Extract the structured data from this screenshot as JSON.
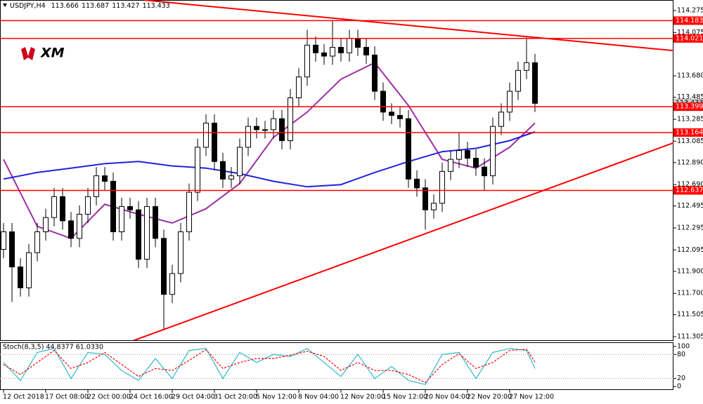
{
  "chart_data": {
    "type": "candlestick",
    "symbol": "USDJPY,H4",
    "quote": [
      113.666,
      113.687,
      113.427,
      113.433
    ],
    "logo": "XM",
    "x": [
      0,
      1,
      2,
      3,
      4,
      5,
      6,
      7,
      8,
      9,
      10,
      11,
      12,
      13,
      14,
      15,
      16,
      17,
      18,
      19,
      20,
      21,
      22,
      23,
      24,
      25,
      26,
      27,
      28,
      29,
      30,
      31,
      32,
      33,
      34,
      35,
      36,
      37,
      38,
      39,
      40,
      41,
      42,
      43,
      44,
      45,
      46,
      47,
      48,
      49,
      50,
      51,
      52,
      53,
      54,
      55,
      56,
      57,
      58,
      59,
      60,
      61,
      62,
      63
    ],
    "open": [
      112.1,
      112.26,
      111.94,
      111.75,
      112.07,
      112.26,
      112.39,
      112.58,
      112.36,
      112.2,
      112.42,
      112.58,
      112.77,
      112.72,
      112.26,
      112.49,
      112.46,
      112.01,
      112.49,
      112.2,
      111.69,
      111.88,
      112.26,
      112.62,
      113.03,
      113.25,
      112.9,
      112.74,
      112.77,
      113.03,
      113.22,
      113.19,
      113.19,
      113.29,
      113.09,
      113.48,
      113.67,
      113.96,
      113.89,
      113.86,
      113.94,
      113.89,
      114.02,
      113.94,
      113.87,
      113.54,
      113.35,
      113.32,
      113.29,
      112.74,
      112.66,
      112.46,
      112.52,
      112.81,
      112.92,
      113.0,
      112.93,
      112.85,
      112.77,
      113.22,
      113.35,
      113.54,
      113.73,
      113.8
    ],
    "high": [
      112.34,
      112.34,
      112.02,
      112.15,
      112.34,
      112.47,
      112.66,
      112.66,
      112.44,
      112.5,
      112.66,
      112.85,
      112.85,
      112.8,
      112.57,
      112.57,
      112.54,
      112.57,
      112.57,
      112.28,
      111.96,
      112.34,
      112.7,
      113.11,
      113.33,
      113.33,
      112.98,
      112.85,
      113.11,
      113.3,
      113.3,
      113.27,
      113.37,
      113.37,
      113.56,
      113.75,
      114.1,
      114.04,
      113.97,
      114.18,
      114.02,
      114.1,
      114.1,
      114.02,
      113.95,
      113.62,
      113.43,
      113.4,
      113.37,
      112.82,
      112.74,
      112.6,
      112.89,
      113.0,
      113.16,
      113.08,
      113.01,
      112.93,
      113.3,
      113.43,
      113.62,
      113.81,
      114.03,
      113.88
    ],
    "low": [
      112.02,
      111.62,
      111.67,
      111.67,
      111.99,
      112.18,
      112.31,
      112.28,
      112.12,
      112.12,
      112.34,
      112.5,
      112.64,
      112.18,
      112.18,
      112.38,
      111.93,
      111.93,
      112.12,
      111.37,
      111.61,
      111.8,
      112.18,
      112.54,
      112.95,
      112.82,
      112.66,
      112.66,
      112.69,
      112.95,
      113.11,
      113.11,
      113.11,
      113.01,
      113.01,
      113.4,
      113.59,
      113.81,
      113.78,
      113.78,
      113.81,
      113.81,
      113.86,
      113.79,
      113.46,
      113.27,
      113.24,
      113.21,
      112.66,
      112.58,
      112.28,
      112.38,
      112.44,
      112.73,
      112.84,
      112.85,
      112.77,
      112.64,
      112.69,
      113.14,
      113.27,
      113.46,
      113.65,
      113.35
    ],
    "close": [
      112.26,
      111.94,
      111.75,
      112.07,
      112.26,
      112.39,
      112.58,
      112.36,
      112.2,
      112.42,
      112.58,
      112.77,
      112.72,
      112.26,
      112.49,
      112.46,
      112.01,
      112.49,
      112.2,
      111.69,
      111.88,
      112.26,
      112.62,
      113.03,
      113.25,
      112.9,
      112.74,
      112.77,
      113.03,
      113.22,
      113.19,
      113.19,
      113.29,
      113.09,
      113.48,
      113.67,
      113.96,
      113.89,
      113.86,
      113.94,
      113.89,
      114.02,
      113.94,
      113.87,
      113.54,
      113.35,
      113.32,
      113.29,
      112.74,
      112.66,
      112.46,
      112.52,
      112.81,
      112.92,
      113.0,
      112.93,
      112.85,
      112.77,
      113.22,
      113.35,
      113.54,
      113.73,
      113.8,
      113.43
    ],
    "bull_color": "#ffffff",
    "bear_color": "#000000",
    "xlim": [
      -0.42,
      79.42
    ],
    "xticks": [
      {
        "value": 0,
        "label": "12 Oct 2018"
      },
      {
        "value": 5,
        "label": "17 Oct 08:00"
      },
      {
        "value": 10,
        "label": "22 Oct 00:00"
      },
      {
        "value": 15,
        "label": "24 Oct 16:00"
      },
      {
        "value": 20,
        "label": "29 Oct 04:00"
      },
      {
        "value": 25,
        "label": "31 Oct 20:00"
      },
      {
        "value": 30,
        "label": "5 Nov 12:00"
      },
      {
        "value": 35,
        "label": "8 Nov 04:00"
      },
      {
        "value": 40,
        "label": "12 Nov 20:00"
      },
      {
        "value": 45,
        "label": "15 Nov 12:00"
      },
      {
        "value": 50,
        "label": "20 Nov 04:00"
      },
      {
        "value": 55,
        "label": "22 Nov 20:00"
      },
      {
        "value": 60,
        "label": "27 Nov 12:00"
      }
    ],
    "ylim": [
      111.273,
      114.371
    ],
    "yticks": [
      114.275,
      114.075,
      {
        "value": 113.68,
        "label": "113.680"
      },
      113.485,
      113.285,
      113.085,
      {
        "value": 112.89,
        "label": "112.890"
      },
      {
        "value": 112.69,
        "label": "112.690"
      },
      112.495,
      112.295,
      112.095,
      {
        "value": 111.9,
        "label": "111.900"
      },
      {
        "value": 111.7,
        "label": "111.700"
      },
      111.505,
      111.305
    ],
    "series": [
      {
        "color": "#9b2fa5",
        "x": [
          0,
          4,
          8,
          12,
          16,
          20,
          24,
          28,
          32,
          36,
          40,
          44,
          48,
          52,
          56,
          60,
          63
        ],
        "values": [
          112.92,
          112.31,
          112.2,
          112.51,
          112.42,
          112.34,
          112.47,
          112.7,
          113.12,
          113.35,
          113.65,
          113.8,
          113.41,
          112.92,
          112.84,
          113.03,
          113.25
        ]
      },
      {
        "color": "#1f22e0",
        "x": [
          0,
          4,
          8,
          12,
          16,
          20,
          24,
          28,
          32,
          36,
          40,
          44,
          48,
          52,
          56,
          60,
          63
        ],
        "values": [
          112.74,
          112.8,
          112.84,
          112.88,
          112.9,
          112.86,
          112.84,
          112.79,
          112.72,
          112.67,
          112.69,
          112.8,
          112.9,
          112.99,
          113.02,
          113.09,
          113.17
        ]
      }
    ],
    "levels": {
      "color": "#ff0000",
      "values": [
        114.183,
        114.021,
        113.399,
        113.164,
        112.637
      ]
    },
    "trendlines": [
      {
        "color": "#ff0000",
        "x": [
          16.67,
          79.42
        ],
        "values": [
          114.37,
          113.91
        ]
      },
      {
        "color": "#ff0000",
        "x": [
          15.42,
          79.42
        ],
        "values": [
          111.27,
          113.07
        ]
      }
    ],
    "indicator": {
      "type": "line",
      "title": "Stoch(8,3,5) 44.8377 61.0330",
      "ylim": [
        -8.6,
        108.6
      ],
      "yticks": [
        100,
        80,
        20,
        0
      ],
      "levels": [
        80,
        20
      ],
      "x": [
        0,
        2,
        4,
        6,
        8,
        10,
        12,
        14,
        16,
        18,
        20,
        22,
        24,
        26,
        28,
        30,
        32,
        34,
        36,
        38,
        40,
        42,
        44,
        46,
        48,
        50,
        52,
        54,
        56,
        58,
        60,
        62,
        63
      ],
      "series": [
        {
          "color": "#30b8c8",
          "dash": false,
          "values": [
            60,
            15,
            85,
            95,
            20,
            85,
            80,
            40,
            15,
            70,
            20,
            90,
            95,
            20,
            85,
            60,
            80,
            75,
            95,
            60,
            25,
            80,
            20,
            50,
            15,
            5,
            80,
            85,
            20,
            85,
            95,
            90,
            45
          ]
        },
        {
          "color": "#ff0000",
          "dash": true,
          "values": [
            55,
            30,
            60,
            90,
            45,
            60,
            85,
            55,
            25,
            45,
            40,
            65,
            92,
            45,
            60,
            70,
            70,
            78,
            88,
            75,
            40,
            60,
            40,
            40,
            30,
            10,
            55,
            82,
            45,
            60,
            90,
            93,
            61
          ]
        }
      ]
    }
  }
}
